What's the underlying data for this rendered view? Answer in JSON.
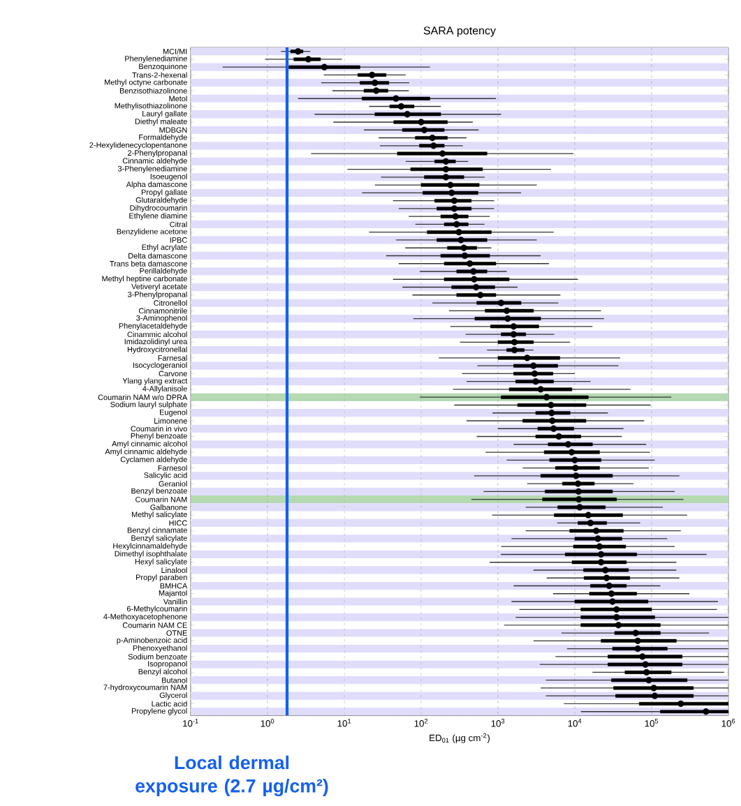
{
  "chart_data": {
    "type": "box",
    "title": "SARA potency",
    "xlabel": "ED$_{01}$ (µg cm$^{-2}$)",
    "orientation": "horizontal",
    "log": "x",
    "grid": "x",
    "color": "#000000",
    "xlim": [
      0.1,
      1000000
    ],
    "xticks": [
      {
        "value": 0.1,
        "label": "10$^{-1}$"
      },
      {
        "value": 1,
        "label": "10$^{0}$"
      },
      {
        "value": 10,
        "label": "10$^{1}$"
      },
      {
        "value": 100,
        "label": "10$^{2}$"
      },
      {
        "value": 1000,
        "label": "10$^{3}$"
      },
      {
        "value": 10000,
        "label": "10$^{4}$"
      },
      {
        "value": 100000,
        "label": "10$^{5}$"
      },
      {
        "value": 1000000,
        "label": "10$^{6}$"
      }
    ],
    "categories": [
      "MCI/MI",
      "Phenylenediamine",
      "Benzoquinone",
      "Trans-2-hexenal",
      "Methyl octyne carbonate",
      "Benzisothiazolinone",
      "Metol",
      "Methylisothiazolinone",
      "Lauryl gallate",
      "Diethyl maleate",
      "MDBGN",
      "Formaldehyde",
      "2-Hexylidenecyclopentanone",
      "2-Phenylpropanal",
      "Cinnamic aldehyde",
      "3-Phenylenediamine",
      "Isoeugenol",
      "Alpha damascone",
      "Propyl gallate",
      "Glutaraldehyde",
      "Dihydrocoumarin",
      "Ethylene diamine",
      "Citral",
      "Benzylidene acetone",
      "IPBC",
      "Ethyl acrylate",
      "Delta damascone",
      "Trans beta damascone",
      "Perillaldehyde",
      "Methyl heptine carbonate",
      "Vetiveryl acetate",
      "3-Phenylpropanal",
      "Citronellol",
      "Cinnamonitrile",
      "3-Aminophenol",
      "Phenylacetaldehyde",
      "Cinammic alcohol",
      "Imidazolidinyl urea",
      "Hydroxycitronellal",
      "Farnesal",
      "Isocyclogeraniol",
      "Carvone",
      "Ylang ylang extract",
      "4-Allylanisole",
      "Coumarin NAM w/o DPRA",
      "Sodium lauryl sulphate",
      "Eugenol",
      "Limonene",
      "Coumarin in vivo",
      "Phenyl benzoate",
      "Amyl cinnamic alcohol",
      "Amyl cinnamic aldehyde",
      "Cyclamen aldehyde",
      "Farnesol",
      "Salicylic acid",
      "Geraniol",
      "Benzyl benzoate",
      "Coumarin NAM",
      "Galbanone",
      "Methyl salicylate",
      "HICC",
      "Benzyl cinnamate",
      "Benzyl salicylate",
      "Hexylcinnamaldehyde",
      "Dimethyl isophthalate",
      "Hexyl salicylate",
      "Linalool",
      "Propyl paraben",
      "BMHCA",
      "Majantol",
      "Vanillin",
      "6-Methylcoumarin",
      "4-Methoxyacetophenone",
      "Coumarin NAM CE",
      "OTNE",
      "p-Aminobenzoic acid",
      "Phenoxyethanol",
      "Sodium benzoate",
      "Isopropanol",
      "Benzyl alcohol",
      "Butanol",
      "7-hydroxycoumarin NAM",
      "Glycerol",
      "Lactic acid",
      "Propylene glycol"
    ],
    "boxes": [
      {
        "low": 1.5,
        "q1": 2.0,
        "median": 2.5,
        "q3": 2.9,
        "high": 3.6
      },
      {
        "low": 0.93,
        "q1": 2.2,
        "median": 3.4,
        "q3": 4.9,
        "high": 9.3
      },
      {
        "low": 0.26,
        "q1": 1.9,
        "median": 5.5,
        "q3": 16,
        "high": 130
      },
      {
        "low": 5.4,
        "q1": 15,
        "median": 23,
        "q3": 35,
        "high": 63
      },
      {
        "low": 5.0,
        "q1": 16,
        "median": 25,
        "q3": 38,
        "high": 70
      },
      {
        "low": 7.0,
        "q1": 18,
        "median": 26,
        "q3": 37,
        "high": 69
      },
      {
        "low": 2.5,
        "q1": 17,
        "median": 47,
        "q3": 130,
        "high": 940
      },
      {
        "low": 21,
        "q1": 39,
        "median": 55,
        "q3": 81,
        "high": 180
      },
      {
        "low": 4.1,
        "q1": 25,
        "median": 66,
        "q3": 180,
        "high": 1100
      },
      {
        "low": 7.2,
        "q1": 44,
        "median": 100,
        "q3": 220,
        "high": 470
      },
      {
        "low": 18,
        "q1": 57,
        "median": 110,
        "q3": 200,
        "high": 560
      },
      {
        "low": 28,
        "q1": 84,
        "median": 140,
        "q3": 220,
        "high": 390
      },
      {
        "low": 29,
        "q1": 95,
        "median": 145,
        "q3": 200,
        "high": 350
      },
      {
        "low": 3.7,
        "q1": 49,
        "median": 190,
        "q3": 720,
        "high": 9600
      },
      {
        "low": 63,
        "q1": 150,
        "median": 210,
        "q3": 280,
        "high": 410
      },
      {
        "low": 11,
        "q1": 73,
        "median": 210,
        "q3": 630,
        "high": 4900
      },
      {
        "low": 30,
        "q1": 110,
        "median": 210,
        "q3": 360,
        "high": 670
      },
      {
        "low": 25,
        "q1": 100,
        "median": 240,
        "q3": 570,
        "high": 3200
      },
      {
        "low": 17,
        "q1": 105,
        "median": 250,
        "q3": 550,
        "high": 2000
      },
      {
        "low": 43,
        "q1": 150,
        "median": 270,
        "q3": 450,
        "high": 890
      },
      {
        "low": 51,
        "q1": 160,
        "median": 270,
        "q3": 450,
        "high": 890
      },
      {
        "low": 69,
        "q1": 180,
        "median": 280,
        "q3": 410,
        "high": 780
      },
      {
        "low": 84,
        "q1": 200,
        "median": 290,
        "q3": 410,
        "high": 670
      },
      {
        "low": 21,
        "q1": 120,
        "median": 310,
        "q3": 820,
        "high": 5300
      },
      {
        "low": 47,
        "q1": 160,
        "median": 330,
        "q3": 720,
        "high": 3200
      },
      {
        "low": 62,
        "q1": 220,
        "median": 360,
        "q3": 530,
        "high": 820
      },
      {
        "low": 35,
        "q1": 180,
        "median": 370,
        "q3": 780,
        "high": 3600
      },
      {
        "low": 51,
        "q1": 200,
        "median": 430,
        "q3": 940,
        "high": 4600
      },
      {
        "low": 96,
        "q1": 290,
        "median": 480,
        "q3": 720,
        "high": 1300
      },
      {
        "low": 43,
        "q1": 200,
        "median": 490,
        "q3": 1400,
        "high": 11000
      },
      {
        "low": 57,
        "q1": 250,
        "median": 520,
        "q3": 910,
        "high": 1800
      },
      {
        "low": 77,
        "q1": 290,
        "median": 590,
        "q3": 940,
        "high": 6500
      },
      {
        "low": 140,
        "q1": 530,
        "median": 1100,
        "q3": 2000,
        "high": 6100
      },
      {
        "low": 230,
        "q1": 680,
        "median": 1300,
        "q3": 2900,
        "high": 22000
      },
      {
        "low": 79,
        "q1": 500,
        "median": 1340,
        "q3": 3600,
        "high": 24000
      },
      {
        "low": 240,
        "q1": 800,
        "median": 1600,
        "q3": 3400,
        "high": 17000
      },
      {
        "low": 380,
        "q1": 1100,
        "median": 1600,
        "q3": 2300,
        "high": 5400
      },
      {
        "low": 320,
        "q1": 1000,
        "median": 1640,
        "q3": 2900,
        "high": 8700
      },
      {
        "low": 720,
        "q1": 1300,
        "median": 1640,
        "q3": 2200,
        "high": 2900
      },
      {
        "low": 170,
        "q1": 1000,
        "median": 2400,
        "q3": 6400,
        "high": 39000
      },
      {
        "low": 540,
        "q1": 1600,
        "median": 2900,
        "q3": 6000,
        "high": 37000
      },
      {
        "low": 340,
        "q1": 1600,
        "median": 3000,
        "q3": 5200,
        "high": 10000
      },
      {
        "low": 390,
        "q1": 1700,
        "median": 3100,
        "q3": 5300,
        "high": 16000
      },
      {
        "low": 260,
        "q1": 1400,
        "median": 3600,
        "q3": 9200,
        "high": 53000
      },
      {
        "low": 96,
        "q1": 1100,
        "median": 4300,
        "q3": 15000,
        "high": 180000
      },
      {
        "low": 270,
        "q1": 1800,
        "median": 4900,
        "q3": 14000,
        "high": 97000
      },
      {
        "low": 850,
        "q1": 3100,
        "median": 5000,
        "q3": 8700,
        "high": 27000
      },
      {
        "low": 390,
        "q1": 2100,
        "median": 5100,
        "q3": 14000,
        "high": 80000
      },
      {
        "low": 1000,
        "q1": 3300,
        "median": 5300,
        "q3": 9700,
        "high": 43000
      },
      {
        "low": 530,
        "q1": 3100,
        "median": 6200,
        "q3": 12000,
        "high": 41000
      },
      {
        "low": 1600,
        "q1": 4500,
        "median": 8200,
        "q3": 17000,
        "high": 85000
      },
      {
        "low": 690,
        "q1": 4000,
        "median": 9100,
        "q3": 21000,
        "high": 95000
      },
      {
        "low": 1300,
        "q1": 4700,
        "median": 10000,
        "q3": 22000,
        "high": 110000
      },
      {
        "low": 2100,
        "q1": 5600,
        "median": 10200,
        "q3": 21000,
        "high": 92000
      },
      {
        "low": 490,
        "q1": 3600,
        "median": 10400,
        "q3": 31000,
        "high": 230000
      },
      {
        "low": 2400,
        "q1": 6900,
        "median": 11000,
        "q3": 18000,
        "high": 58000
      },
      {
        "low": 650,
        "q1": 4100,
        "median": 11200,
        "q3": 31000,
        "high": 200000
      },
      {
        "low": 450,
        "q1": 3800,
        "median": 11300,
        "q3": 35000,
        "high": 260000
      },
      {
        "low": 2300,
        "q1": 6000,
        "median": 11600,
        "q3": 25000,
        "high": 140000
      },
      {
        "low": 840,
        "q1": 5400,
        "median": 15000,
        "q3": 42000,
        "high": 290000
      },
      {
        "low": 5900,
        "q1": 11000,
        "median": 16000,
        "q3": 26000,
        "high": 71000
      },
      {
        "low": 2300,
        "q1": 8600,
        "median": 19000,
        "q3": 43000,
        "high": 240000
      },
      {
        "low": 1500,
        "q1": 10000,
        "median": 20000,
        "q3": 41000,
        "high": 160000
      },
      {
        "low": 1100,
        "q1": 9600,
        "median": 21000,
        "q3": 46000,
        "high": 200000
      },
      {
        "low": 1090,
        "q1": 7500,
        "median": 22000,
        "q3": 64000,
        "high": 520000
      },
      {
        "low": 780,
        "q1": 9200,
        "median": 22000,
        "q3": 47000,
        "high": 210000
      },
      {
        "low": 2900,
        "q1": 13000,
        "median": 25000,
        "q3": 50000,
        "high": 210000
      },
      {
        "low": 4300,
        "q1": 13200,
        "median": 26000,
        "q3": 52000,
        "high": 230000
      },
      {
        "low": 1600,
        "q1": 16000,
        "median": 28000,
        "q3": 47000,
        "high": 130000
      },
      {
        "low": 5200,
        "q1": 15500,
        "median": 30000,
        "q3": 64000,
        "high": 310000
      },
      {
        "low": 1500,
        "q1": 10000,
        "median": 31000,
        "q3": 90000,
        "high": 730000
      },
      {
        "low": 1900,
        "q1": 12000,
        "median": 35000,
        "q3": 100000,
        "high": 710000
      },
      {
        "low": 1700,
        "q1": 12000,
        "median": 35000,
        "q3": 110000,
        "high": 1000000
      },
      {
        "low": 1200,
        "q1": 12000,
        "median": 37000,
        "q3": 130000,
        "high": 1000000
      },
      {
        "low": 6700,
        "q1": 33000,
        "median": 62000,
        "q3": 130000,
        "high": 560000
      },
      {
        "low": 2900,
        "q1": 22000,
        "median": 66000,
        "q3": 210000,
        "high": 1000000
      },
      {
        "low": 7900,
        "q1": 31000,
        "median": 66000,
        "q3": 160000,
        "high": 1000000
      },
      {
        "low": 5600,
        "q1": 27000,
        "median": 76000,
        "q3": 250000,
        "high": 1000000
      },
      {
        "low": 3500,
        "q1": 27000,
        "median": 83000,
        "q3": 250000,
        "high": 1000000
      },
      {
        "low": 17000,
        "q1": 45000,
        "median": 86000,
        "q3": 180000,
        "high": 880000
      },
      {
        "low": 4200,
        "q1": 30000,
        "median": 92000,
        "q3": 290000,
        "high": 1000000
      },
      {
        "low": 3600,
        "q1": 32000,
        "median": 107000,
        "q3": 350000,
        "high": 1000000
      },
      {
        "low": 4200,
        "q1": 34000,
        "median": 110000,
        "q3": 350000,
        "high": 1000000
      },
      {
        "low": 7200,
        "q1": 69000,
        "median": 240000,
        "q3": 1000000,
        "high": 1000000
      },
      {
        "low": 12000,
        "q1": 130000,
        "median": 510000,
        "q3": 1000000,
        "high": 1000000
      }
    ],
    "ref_lines": [
      {
        "axis": "x",
        "value": 1.8,
        "label": "Local dermal exposure (2.7 µg/cm²)",
        "color": "#1560f0"
      }
    ],
    "bands": [
      {
        "axis": "y",
        "from": "Coumarin NAM w/o DPRA",
        "to": "Coumarin NAM w/o DPRA",
        "color": "#b5d9b1"
      },
      {
        "axis": "y",
        "from": "Coumarin NAM",
        "to": "Coumarin NAM",
        "color": "#b5d9b1"
      }
    ]
  }
}
